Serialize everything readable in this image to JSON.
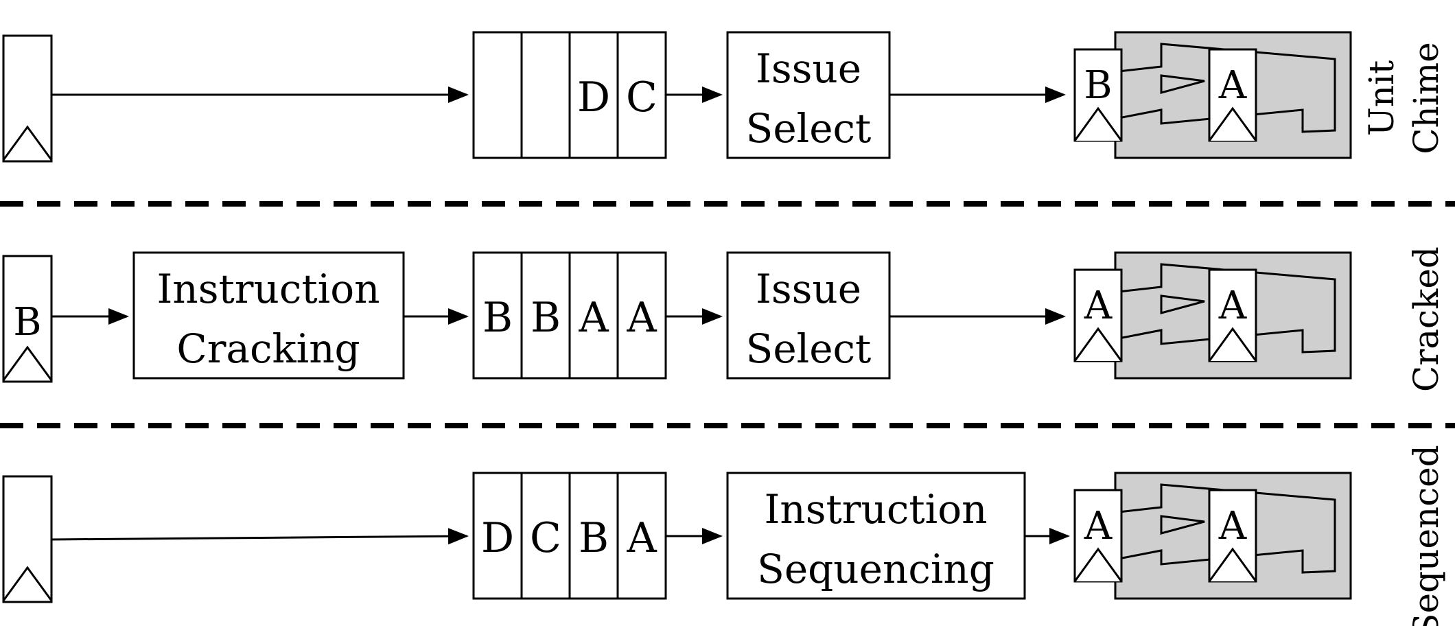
{
  "rows": [
    {
      "side_label_lines": [
        "Unit",
        "Chime"
      ],
      "source_reg": "",
      "crack_label_lines": [],
      "queue": [
        "",
        "",
        "D",
        "C"
      ],
      "select_label_lines": [
        "Issue",
        "Select"
      ],
      "unit_regs": [
        "B",
        "A"
      ]
    },
    {
      "side_label_lines": [
        "Cracked"
      ],
      "source_reg": "B",
      "crack_label_lines": [
        "Instruction",
        "Cracking"
      ],
      "queue": [
        "B",
        "B",
        "A",
        "A"
      ],
      "select_label_lines": [
        "Issue",
        "Select"
      ],
      "unit_regs": [
        "A",
        "A"
      ]
    },
    {
      "side_label_lines": [
        "Sequenced"
      ],
      "source_reg": "",
      "crack_label_lines": [],
      "queue": [
        "D",
        "C",
        "B",
        "A"
      ],
      "select_label_lines": [
        "Instruction",
        "Sequencing"
      ],
      "unit_regs": [
        "A",
        "A"
      ]
    }
  ]
}
